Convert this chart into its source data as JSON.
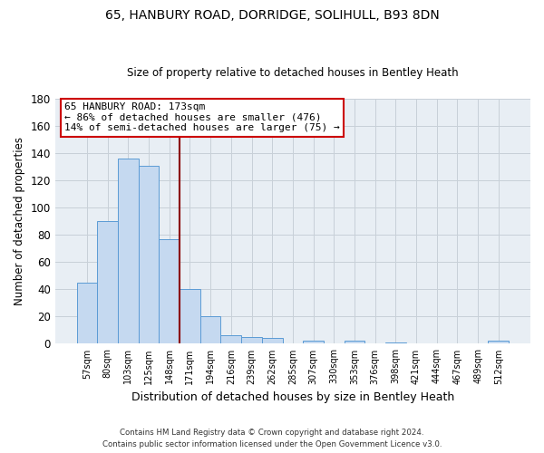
{
  "title": "65, HANBURY ROAD, DORRIDGE, SOLIHULL, B93 8DN",
  "subtitle": "Size of property relative to detached houses in Bentley Heath",
  "xlabel": "Distribution of detached houses by size in Bentley Heath",
  "ylabel": "Number of detached properties",
  "bar_labels": [
    "57sqm",
    "80sqm",
    "103sqm",
    "125sqm",
    "148sqm",
    "171sqm",
    "194sqm",
    "216sqm",
    "239sqm",
    "262sqm",
    "285sqm",
    "307sqm",
    "330sqm",
    "353sqm",
    "376sqm",
    "398sqm",
    "421sqm",
    "444sqm",
    "467sqm",
    "489sqm",
    "512sqm"
  ],
  "bar_values": [
    45,
    90,
    136,
    131,
    77,
    40,
    20,
    6,
    5,
    4,
    0,
    2,
    0,
    2,
    0,
    1,
    0,
    0,
    0,
    0,
    2
  ],
  "bar_color": "#c5d9f0",
  "bar_edge_color": "#5b9bd5",
  "vline_color": "#8b0000",
  "annotation_line1": "65 HANBURY ROAD: 173sqm",
  "annotation_line2": "← 86% of detached houses are smaller (476)",
  "annotation_line3": "14% of semi-detached houses are larger (75) →",
  "annotation_box_color": "#ffffff",
  "annotation_box_edge": "#cc0000",
  "ylim": [
    0,
    180
  ],
  "yticks": [
    0,
    20,
    40,
    60,
    80,
    100,
    120,
    140,
    160,
    180
  ],
  "grid_color": "#c8d0d8",
  "background_color": "#e8eef4",
  "footer_line1": "Contains HM Land Registry data © Crown copyright and database right 2024.",
  "footer_line2": "Contains public sector information licensed under the Open Government Licence v3.0."
}
